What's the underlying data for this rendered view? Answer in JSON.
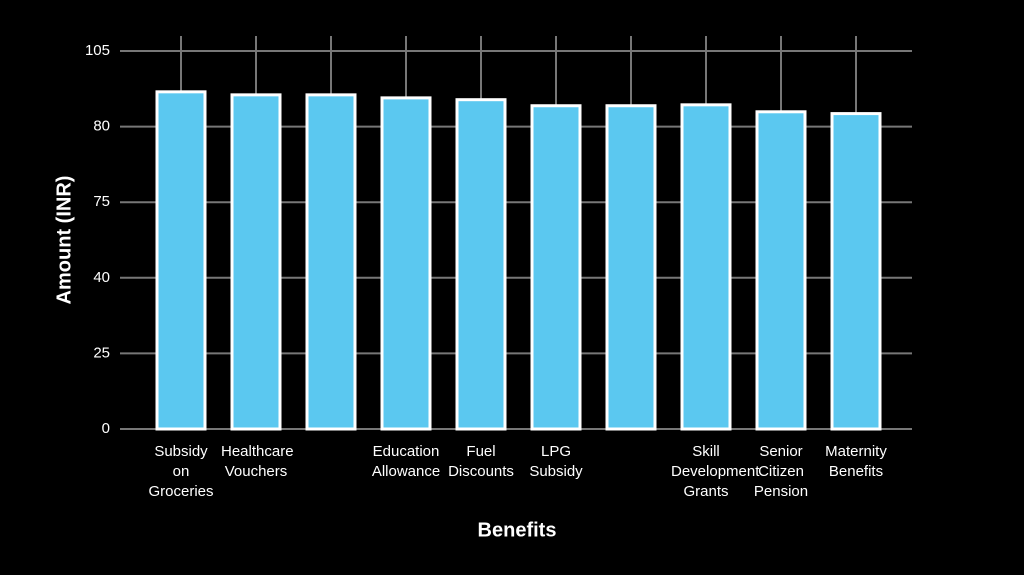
{
  "chart_data": {
    "type": "bar",
    "x_label": "Benefits",
    "y_label": "Amount (INR)",
    "categories": [
      "Subsidy on Groceries",
      "Healthcare Vouchers",
      null,
      "Education Allowance",
      "Fuel Discounts",
      "LPG Subsidy",
      null,
      "Skill Development Grants",
      "Senior Citizen Pension",
      "Maternity Benefits"
    ],
    "values": [
      91.5,
      90.5,
      90.5,
      89.5,
      88.9,
      86.9,
      86.9,
      87.2,
      84.9,
      84.3
    ],
    "color": "#5bc8f0",
    "ylim": [
      0,
      105
    ],
    "yticks": [
      0,
      25,
      40,
      75,
      80,
      105
    ],
    "grid": true
  }
}
